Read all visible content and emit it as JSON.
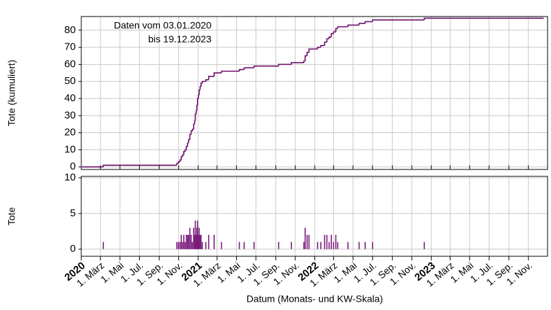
{
  "chart_data": [
    {
      "type": "step",
      "ylabel": "Tote (kumuliert)",
      "annotations": [
        "Daten vom 03.01.2020",
        "bis 19.12.2023"
      ],
      "color": "#6b0d6b",
      "ylim": [
        -1.5,
        88
      ],
      "yticks": [
        0,
        10,
        20,
        30,
        40,
        50,
        60,
        70,
        80
      ],
      "grid": true,
      "x": [
        "2020-01-03",
        "2020-03-10",
        "2020-10-26",
        "2020-10-31",
        "2020-11-05",
        "2020-11-09",
        "2020-11-13",
        "2020-11-17",
        "2020-11-21",
        "2020-11-25",
        "2020-11-29",
        "2020-12-02",
        "2020-12-06",
        "2020-12-10",
        "2020-12-14",
        "2020-12-18",
        "2020-12-21",
        "2020-12-23",
        "2020-12-26",
        "2020-12-28",
        "2020-12-30",
        "2021-01-02",
        "2021-01-04",
        "2021-01-07",
        "2021-01-10",
        "2021-01-14",
        "2021-01-25",
        "2021-02-03",
        "2021-02-20",
        "2021-03-15",
        "2021-05-10",
        "2021-05-25",
        "2021-06-25",
        "2021-09-10",
        "2021-10-20",
        "2021-11-28",
        "2021-12-02",
        "2021-12-08",
        "2021-12-14",
        "2022-01-10",
        "2022-01-20",
        "2022-02-01",
        "2022-02-08",
        "2022-02-15",
        "2022-02-22",
        "2022-03-01",
        "2022-03-08",
        "2022-03-14",
        "2022-04-15",
        "2022-05-20",
        "2022-06-08",
        "2022-07-01",
        "2022-12-10",
        "2023-12-19"
      ],
      "values": [
        0,
        1,
        2,
        3,
        4,
        6,
        7,
        9,
        10,
        12,
        14,
        16,
        19,
        21,
        22,
        25,
        27,
        31,
        33,
        36,
        40,
        42,
        45,
        47,
        49,
        50,
        51,
        53,
        55,
        56,
        57,
        58,
        59,
        60,
        61,
        62,
        65,
        67,
        69,
        70,
        71,
        73,
        75,
        76,
        78,
        79,
        81,
        82,
        83,
        84,
        85,
        86,
        87,
        87
      ]
    },
    {
      "type": "bar",
      "ylabel": "Tote",
      "xlabel": "Datum (Monats- und KW-Skala)",
      "color": "#7a1a7a",
      "ylim": [
        -1,
        10.2
      ],
      "yticks": [
        0,
        5,
        10
      ],
      "grid": true,
      "xlim": [
        "2020-01-01",
        "2023-12-31"
      ],
      "xticks": [
        {
          "value": "2020-01-01",
          "label": "2020"
        },
        {
          "value": "2020-03-01",
          "label": "1. März"
        },
        {
          "value": "2020-05-01",
          "label": "1. Mai"
        },
        {
          "value": "2020-07-01",
          "label": "1. Jul."
        },
        {
          "value": "2020-09-01",
          "label": "1. Sep."
        },
        {
          "value": "2020-11-01",
          "label": "1. Nov."
        },
        {
          "value": "2021-01-01",
          "label": "2021"
        },
        {
          "value": "2021-03-01",
          "label": "1. März"
        },
        {
          "value": "2021-05-01",
          "label": "1. Mai"
        },
        {
          "value": "2021-07-01",
          "label": "1. Jul."
        },
        {
          "value": "2021-09-01",
          "label": "1. Sep."
        },
        {
          "value": "2021-11-01",
          "label": "1. Nov."
        },
        {
          "value": "2022-01-01",
          "label": "2022"
        },
        {
          "value": "2022-03-01",
          "label": "1. März"
        },
        {
          "value": "2022-05-01",
          "label": "1. Mai"
        },
        {
          "value": "2022-07-01",
          "label": "1. Jul."
        },
        {
          "value": "2022-09-01",
          "label": "1. Sep."
        },
        {
          "value": "2022-11-01",
          "label": "1. Nov."
        },
        {
          "value": "2023-01-01",
          "label": "2023"
        },
        {
          "value": "2023-03-01",
          "label": "1. März"
        },
        {
          "value": "2023-05-01",
          "label": "1. Mai"
        },
        {
          "value": "2023-07-01",
          "label": "1. Jul."
        },
        {
          "value": "2023-09-01",
          "label": "1. Sep."
        },
        {
          "value": "2023-11-01",
          "label": "1. Nov."
        }
      ],
      "x": [
        "2020-03-10",
        "2020-10-26",
        "2020-10-31",
        "2020-11-05",
        "2020-11-09",
        "2020-11-13",
        "2020-11-17",
        "2020-11-21",
        "2020-11-25",
        "2020-11-29",
        "2020-12-02",
        "2020-12-06",
        "2020-12-10",
        "2020-12-14",
        "2020-12-18",
        "2020-12-21",
        "2020-12-23",
        "2020-12-26",
        "2020-12-28",
        "2020-12-30",
        "2021-01-02",
        "2021-01-04",
        "2021-01-07",
        "2021-01-10",
        "2021-01-14",
        "2021-01-25",
        "2021-02-03",
        "2021-02-20",
        "2021-03-15",
        "2021-05-10",
        "2021-05-25",
        "2021-06-25",
        "2021-09-10",
        "2021-10-20",
        "2021-11-28",
        "2021-12-02",
        "2021-12-08",
        "2021-12-14",
        "2022-01-10",
        "2022-01-20",
        "2022-02-01",
        "2022-02-08",
        "2022-02-15",
        "2022-02-22",
        "2022-03-01",
        "2022-03-08",
        "2022-03-14",
        "2022-04-15",
        "2022-05-20",
        "2022-06-08",
        "2022-07-01",
        "2022-12-10"
      ],
      "values": [
        1,
        1,
        1,
        1,
        2,
        1,
        2,
        1,
        2,
        2,
        2,
        3,
        2,
        1,
        3,
        2,
        4,
        2,
        3,
        4,
        2,
        3,
        2,
        2,
        1,
        1,
        2,
        2,
        1,
        1,
        1,
        1,
        1,
        1,
        1,
        3,
        2,
        2,
        1,
        1,
        2,
        2,
        1,
        2,
        1,
        2,
        1,
        1,
        1,
        1,
        1,
        1
      ]
    }
  ]
}
